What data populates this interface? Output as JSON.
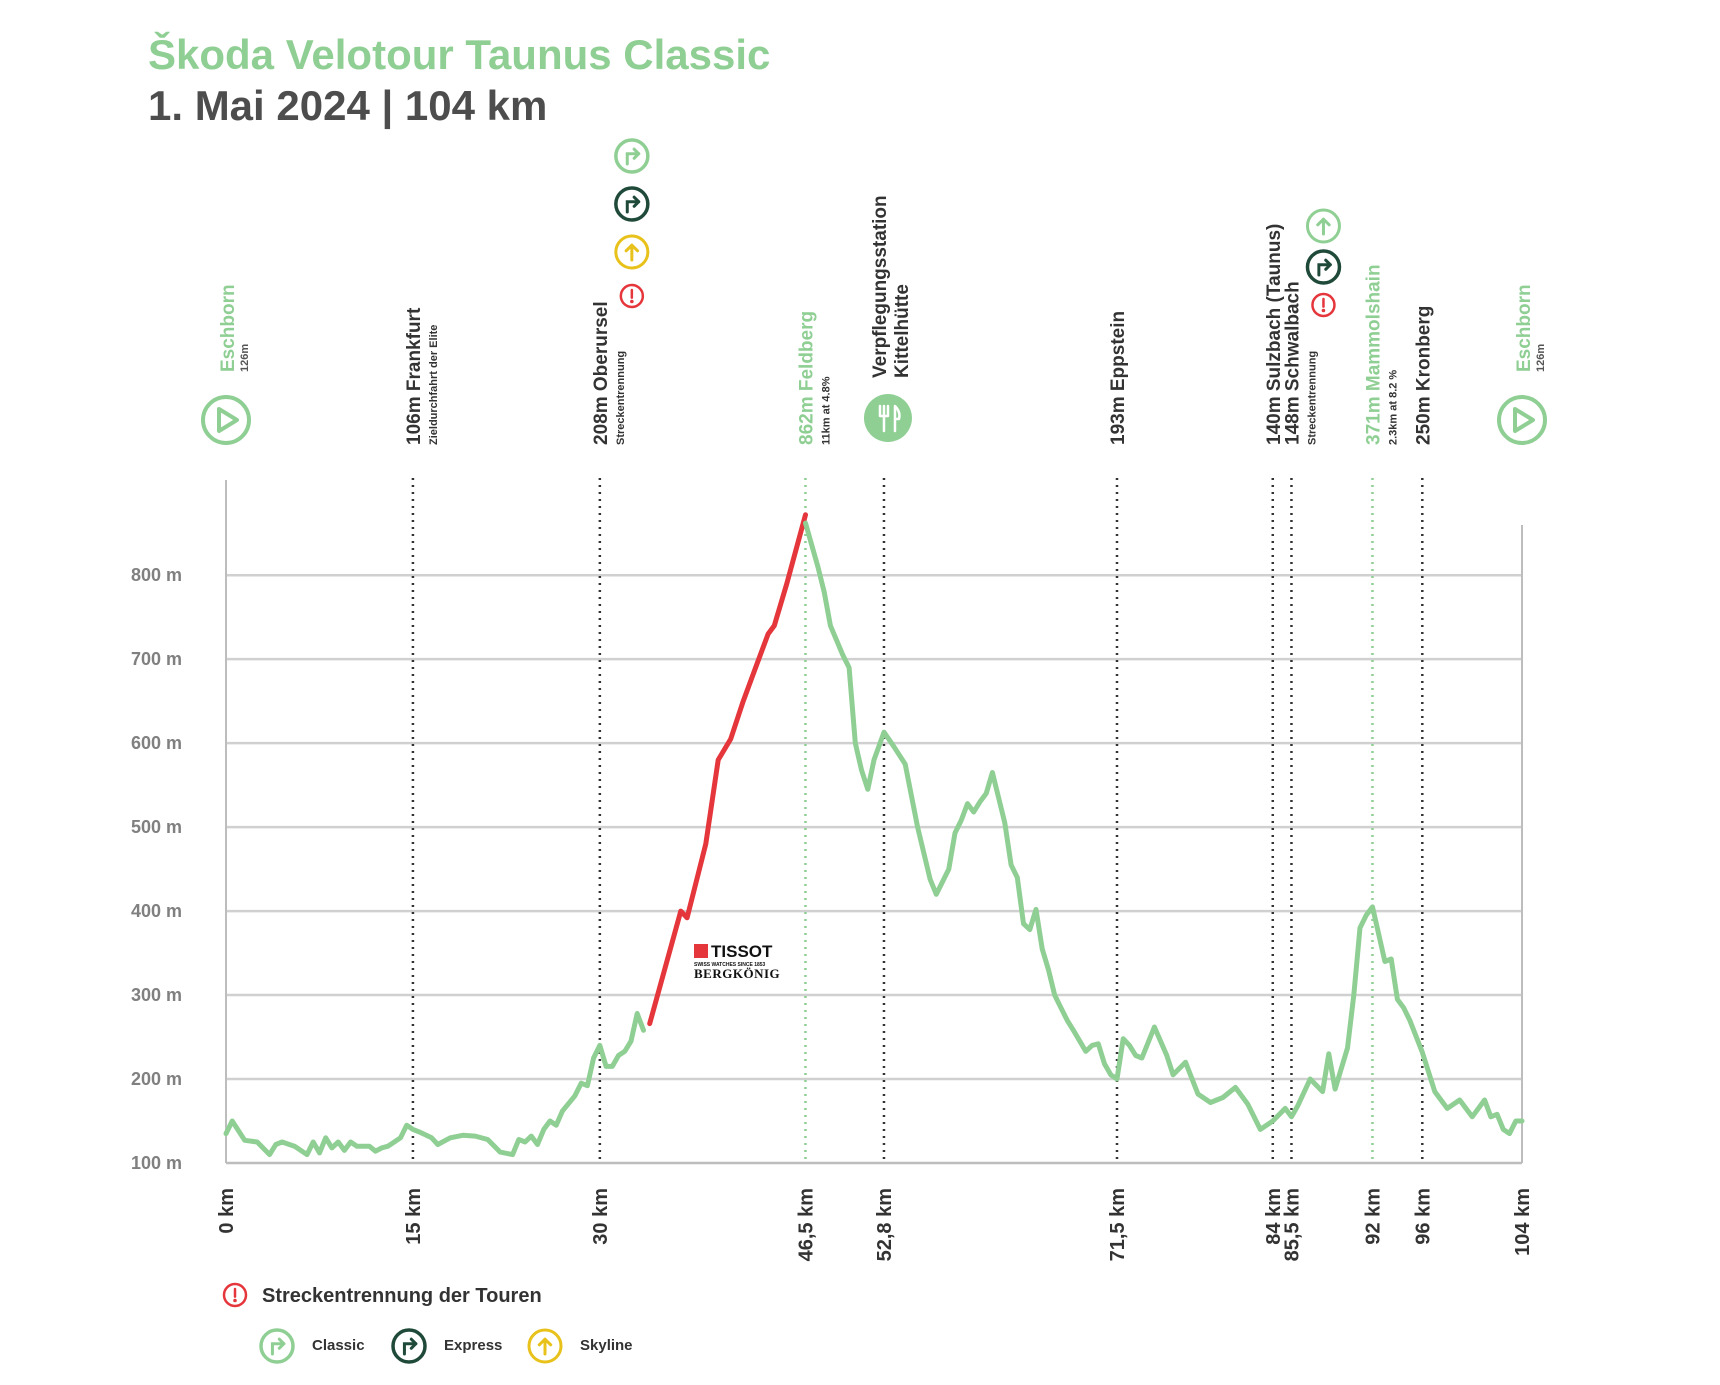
{
  "title": "Škoda Velotour Taunus Classic",
  "subtitle": "1. Mai 2024 | 104 km",
  "colors": {
    "green": "#8fcf94",
    "dark_green": "#1f4a3a",
    "red": "#e5363c",
    "yellow": "#e8c21b",
    "grid": "#d0d0d0",
    "text_dark": "#333333",
    "text_gray": "#808080"
  },
  "sponsor": {
    "brand": "TISSOT",
    "tagline": "SWISS WATCHES SINCE 1853",
    "name": "BERGKÖNIG"
  },
  "markers": [
    {
      "km": 0,
      "line": "Eschborn",
      "sub": "126m",
      "style": "green",
      "icon": "start-play-icon",
      "dotted": false
    },
    {
      "km": 15,
      "line": "106m Frankfurt",
      "sub": "Zieldurchfahrt der Elite",
      "style": "dark",
      "dotted": true
    },
    {
      "km": 30,
      "line": "208m Oberursel",
      "sub": "Streckentrennung",
      "style": "dark",
      "dotted": true
    },
    {
      "km": 46.5,
      "line": "862m Feldberg",
      "sub": "11km at 4.8%",
      "style": "green",
      "dotted": true
    },
    {
      "km": 52.8,
      "line": "Verpflegungsstation",
      "line2": "Kittelhütte",
      "style": "dark",
      "icon": "food-station-icon",
      "dotted": true
    },
    {
      "km": 71.5,
      "line": "193m Eppstein",
      "style": "dark",
      "dotted": true
    },
    {
      "km": 84,
      "line": "140m Sulzbach (Taunus)",
      "style": "dark",
      "dotted": true
    },
    {
      "km": 85.5,
      "line": "148m Schwalbach",
      "sub": "Streckentrennung",
      "style": "dark",
      "dotted": true
    },
    {
      "km": 92,
      "line": "371m Mammolshain",
      "sub": "2.3km at 8.2 %",
      "style": "green",
      "dotted": true
    },
    {
      "km": 96,
      "line": "250m Kronberg",
      "style": "dark",
      "dotted": true
    },
    {
      "km": 104,
      "line": "Eschborn",
      "sub": "126m",
      "style": "green",
      "icon": "finish-play-icon",
      "dotted": false
    }
  ],
  "legend": {
    "split_label": "Streckentrennung der Touren",
    "items": [
      {
        "label": "Classic",
        "icon": "turn-right-icon",
        "color": "#8fcf94"
      },
      {
        "label": "Express",
        "icon": "turn-right-icon",
        "color": "#1f4a3a"
      },
      {
        "label": "Skyline",
        "icon": "straight-arrow-icon",
        "color": "#e8c21b"
      }
    ]
  },
  "chart_data": {
    "type": "line",
    "title": "Škoda Velotour Taunus Classic",
    "subtitle": "1. Mai 2024 | 104 km",
    "xlabel": "",
    "ylabel": "",
    "xlim": [
      0,
      104
    ],
    "ylim": [
      100,
      900
    ],
    "grid": true,
    "y_ticks": [
      100,
      200,
      300,
      400,
      500,
      600,
      700,
      800
    ],
    "y_tick_labels": [
      "100 m",
      "200 m",
      "300 m",
      "400 m",
      "500 m",
      "600 m",
      "700 m",
      "800 m"
    ],
    "x_ticks": [
      0,
      15,
      30,
      46.5,
      52.8,
      71.5,
      84,
      85.5,
      92,
      96,
      104
    ],
    "x_tick_labels": [
      "0 km",
      "15 km",
      "30 km",
      "46,5 km",
      "52,8 km",
      "71,5 km",
      "84 km",
      "85,5 km",
      "92 km",
      "96 km",
      "104 km"
    ],
    "series": [
      {
        "color": "#8fcf94",
        "x": [
          0,
          0.5,
          1.5,
          2.5,
          3.5,
          4,
          4.5,
          5.5,
          6.5,
          7,
          7.5,
          8,
          8.5,
          9,
          9.5,
          10,
          10.5,
          11.5,
          12,
          12.5,
          13,
          14,
          14.5,
          15,
          15.5,
          16.5,
          17,
          18,
          19,
          20,
          21,
          22,
          23,
          23.5,
          24,
          24.5,
          25,
          25.5,
          26,
          26.5,
          27,
          28,
          28.5,
          29,
          29.5,
          30,
          30.5,
          31,
          31.5,
          32,
          32.5,
          33,
          33.5
        ],
        "y": [
          135,
          150,
          127,
          125,
          110,
          122,
          125,
          120,
          110,
          125,
          112,
          130,
          118,
          125,
          115,
          125,
          120,
          120,
          114,
          118,
          120,
          130,
          145,
          140,
          137,
          130,
          122,
          130,
          133,
          132,
          128,
          113,
          110,
          128,
          125,
          132,
          122,
          140,
          150,
          145,
          162,
          180,
          195,
          192,
          225,
          240,
          215,
          215,
          228,
          233,
          245,
          278,
          258
        ]
      },
      {
        "color": "#e5363c",
        "x": [
          34,
          36.5,
          37,
          38.5,
          39.5,
          40.5,
          41.5,
          42.5,
          43.5,
          44,
          45,
          46.5
        ],
        "y": [
          266,
          400,
          392,
          480,
          580,
          605,
          650,
          690,
          730,
          740,
          790,
          872
        ]
      },
      {
        "color": "#8fcf94",
        "x": [
          46.5,
          47.5,
          48,
          48.5,
          49.5,
          50,
          50.5,
          51,
          51.5,
          52,
          52.8,
          53.5,
          54.5,
          55.5,
          56.5,
          57,
          58,
          58.5,
          59,
          59.5,
          60,
          60.5,
          61,
          61.5,
          62,
          62.5,
          63,
          63.5,
          64,
          64.5,
          65,
          65.5,
          66,
          66.5,
          67,
          67.5,
          68,
          69,
          69.5,
          70,
          70.5,
          71,
          71.5,
          72,
          72.5,
          73,
          73.5,
          74.5,
          75.5,
          76,
          77,
          78,
          79,
          80,
          81,
          82,
          83,
          84,
          85,
          85.5,
          86,
          87,
          88,
          88.5,
          89,
          90,
          90.5,
          91,
          91.5,
          92,
          93,
          93.5,
          94,
          94.5,
          95,
          96,
          97,
          98,
          99,
          100,
          101,
          101.5,
          102,
          102.5,
          103,
          103.5,
          104
        ],
        "y": [
          862,
          810,
          780,
          740,
          705,
          690,
          600,
          568,
          545,
          580,
          613,
          598,
          575,
          500,
          438,
          420,
          450,
          493,
          508,
          528,
          518,
          530,
          540,
          565,
          535,
          505,
          455,
          440,
          385,
          378,
          402,
          355,
          330,
          300,
          285,
          270,
          258,
          233,
          240,
          242,
          218,
          205,
          200,
          248,
          240,
          228,
          225,
          262,
          228,
          205,
          220,
          182,
          172,
          178,
          190,
          170,
          140,
          150,
          165,
          155,
          168,
          200,
          185,
          230,
          188,
          237,
          300,
          380,
          395,
          405,
          340,
          343,
          295,
          285,
          270,
          232,
          185,
          165,
          175,
          155,
          175,
          155,
          158,
          140,
          135,
          150,
          150
        ]
      }
    ]
  }
}
